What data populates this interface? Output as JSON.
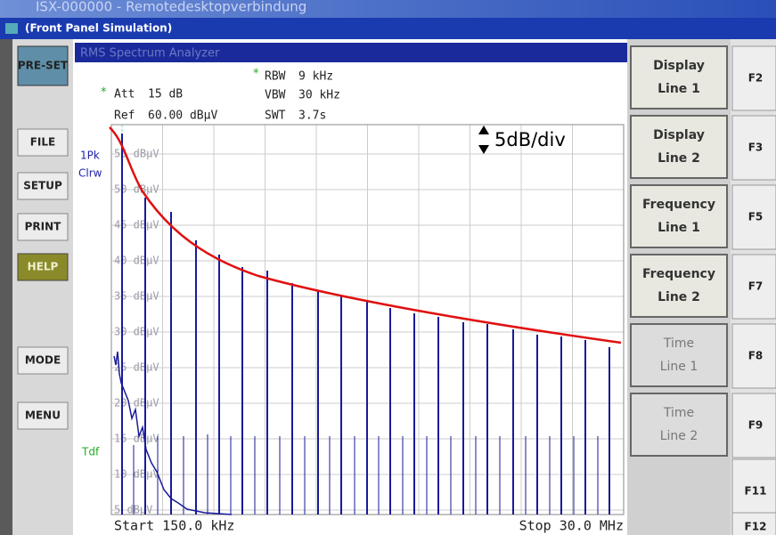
{
  "window": {
    "title": "ISX-000000 - Remotedesktopverbindung",
    "subtitle": "(Front Panel Simulation)"
  },
  "left_buttons": [
    "PRE-SET",
    "FILE",
    "SETUP",
    "PRINT",
    "HELP",
    "MODE",
    "MENU"
  ],
  "screen": {
    "header": "RMS Spectrum Analyzer",
    "settings": {
      "att": "Att",
      "att_value": "15 dB",
      "ref": "Ref",
      "ref_value": "60.00 dBµV",
      "rbw": "RBW",
      "rbw_value": "9 kHz",
      "vbw": "VBW",
      "vbw_value": "30 kHz",
      "swt": "SWT",
      "swt_value": "3.7s"
    },
    "trace": [
      "1Pk",
      "Clrw"
    ],
    "tdf": "Tdf",
    "scale": "5dB/div",
    "level_labels": [
      "55 dBµV",
      "50 dBµV",
      "45 dBµV",
      "40 dBµV",
      "35 dBµV",
      "30 dBµV",
      "25 dBµV",
      "20 dBµV",
      "15 dBµV",
      "10 dBµV",
      "5 dBµV"
    ],
    "start": "Start 150.0 kHz",
    "stop": "Stop 30.0 MHz"
  },
  "softkeys": [
    [
      "Display",
      "Line 1"
    ],
    [
      "Display",
      "Line 2"
    ],
    [
      "Frequency",
      "Line 1"
    ],
    [
      "Frequency",
      "Line 2"
    ],
    [
      "Time",
      "Line 1"
    ],
    [
      "Time",
      "Line 2"
    ]
  ],
  "fkeys": [
    "F2",
    "F3",
    "F5",
    "F7",
    "F8",
    "F9",
    "F11",
    "F12"
  ]
}
